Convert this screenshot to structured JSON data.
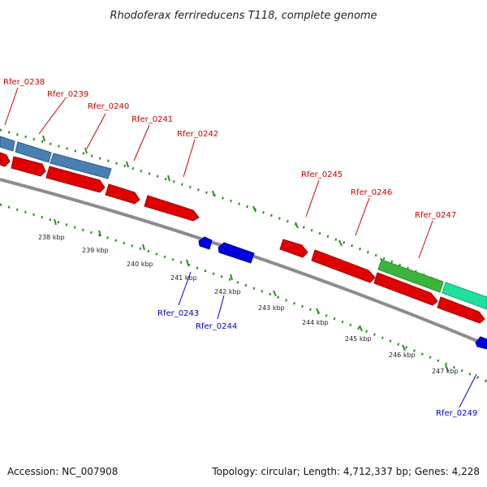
{
  "title": "Rhodoferax ferrireducens T118, complete genome",
  "footer": {
    "accession": "Accession: NC_007908",
    "topology": "Topology: circular; Length: 4,712,337 bp; Genes: 4,228"
  },
  "colors": {
    "backbone": "#8c8c8c",
    "tick": "#2e8b22",
    "forward_gene": "#e00000",
    "reverse_gene": "#0000dd",
    "blue_feature": "#4a7fb3",
    "green_feature": "#3cb43c",
    "teal_feature": "#20e0a0",
    "forward_label": "#cc0000",
    "reverse_label": "#0000cc"
  },
  "kbp_labels": [
    "238 kbp",
    "239 kbp",
    "240 kbp",
    "241 kbp",
    "242 kbp",
    "243 kbp",
    "244 kbp",
    "245 kbp",
    "246 kbp",
    "247 kbp"
  ],
  "forward_gene_labels": [
    "Rfer_0238",
    "Rfer_0239",
    "Rfer_0240",
    "Rfer_0241",
    "Rfer_0242",
    "Rfer_0245",
    "Rfer_0246",
    "Rfer_0247"
  ],
  "reverse_gene_labels": [
    "Rfer_0243",
    "Rfer_0244",
    "Rfer_0249"
  ]
}
